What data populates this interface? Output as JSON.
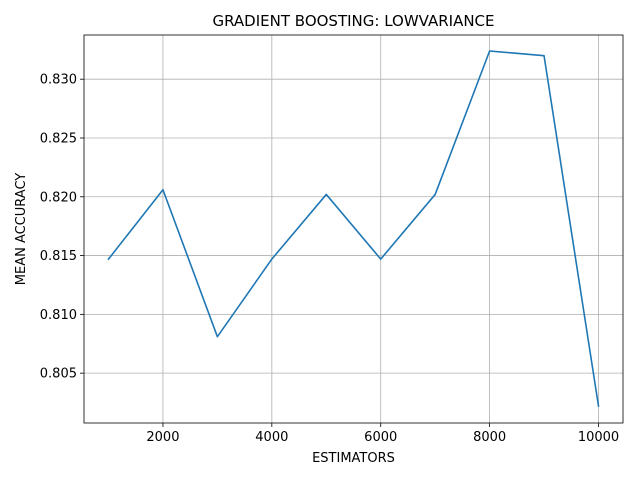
{
  "chart_data": {
    "type": "line",
    "title": "GRADIENT BOOSTING: LOWVARIANCE",
    "xlabel": "ESTIMATORS",
    "ylabel": "MEAN ACCURACY",
    "x": [
      1000,
      2000,
      3000,
      4000,
      5000,
      6000,
      7000,
      8000,
      9000,
      10000
    ],
    "series": [
      {
        "name": "mean accuracy",
        "color": "#1f77b4",
        "values": [
          0.8147,
          0.8206,
          0.8081,
          0.8147,
          0.8202,
          0.8147,
          0.8202,
          0.8324,
          0.832,
          0.8022
        ]
      }
    ],
    "xlim": [
      550,
      10450
    ],
    "ylim": [
      0.80076,
      0.83376
    ],
    "xticks": [
      2000,
      4000,
      6000,
      8000,
      10000
    ],
    "xtick_labels": [
      "2000",
      "4000",
      "6000",
      "8000",
      "10000"
    ],
    "yticks": [
      0.805,
      0.81,
      0.815,
      0.82,
      0.825,
      0.83
    ],
    "ytick_labels": [
      "0.805",
      "0.810",
      "0.815",
      "0.820",
      "0.825",
      "0.830"
    ],
    "grid": true,
    "grid_color": "#b0b0b0",
    "axis_color": "#000000"
  }
}
